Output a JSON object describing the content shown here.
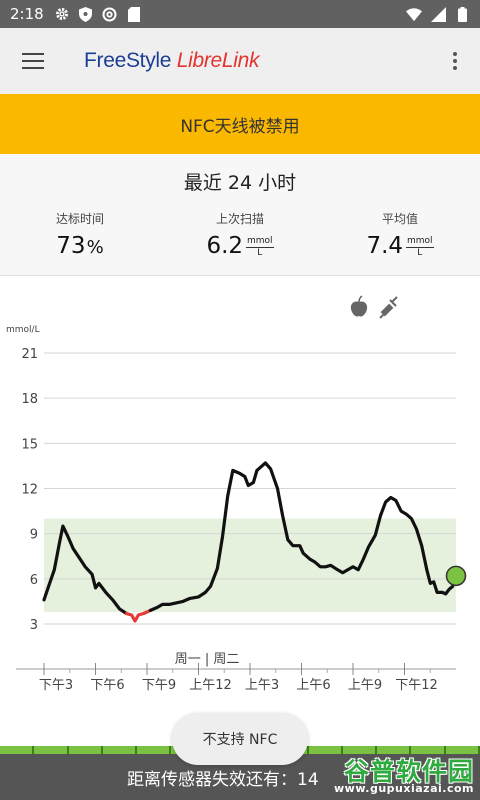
{
  "status_bar": {
    "time": "2:18",
    "left_icons": [
      "gear-icon",
      "shield-icon",
      "at-icon",
      "sdcard-icon"
    ],
    "right_icons": [
      "wifi-icon",
      "signal-icon",
      "battery-icon"
    ]
  },
  "app_bar": {
    "logo_part1": "FreeStyle ",
    "logo_part2": "LibreLink",
    "menu_icon": "hamburger-icon",
    "more_icon": "more-vert-icon"
  },
  "banner": {
    "text": "NFC天线被禁用",
    "color": "#fbb800"
  },
  "summary": {
    "title": "最近 24 小时",
    "time_in_target": {
      "label": "达标时间",
      "value": "73",
      "unit": "%"
    },
    "last_scan": {
      "label": "上次扫描",
      "value": "6.2",
      "unit_top": "mmol",
      "unit_bottom": "L"
    },
    "average": {
      "label": "平均值",
      "value": "7.4",
      "unit_top": "mmol",
      "unit_bottom": "L"
    }
  },
  "chart_data": {
    "type": "line",
    "ylabel": "mmol/L",
    "y_ticks": [
      21,
      18,
      15,
      12,
      9,
      6,
      3
    ],
    "ylim": [
      3,
      21
    ],
    "target_range": [
      3.8,
      10
    ],
    "x_tick_labels": [
      "下午3",
      "下午6",
      "下午9",
      "上午12",
      "上午3",
      "上午6",
      "上午9",
      "下午12"
    ],
    "day_divider_label": "周一 | 周二",
    "icons": [
      "apple-icon",
      "syringe-icon"
    ],
    "low_threshold": 3.9,
    "colors": {
      "line": "#111111",
      "low": "#e53935",
      "range_fill": "#e6f1dd",
      "current_point": "#7cc242"
    },
    "series": [
      {
        "values": [
          [
            0,
            4.6
          ],
          [
            0.3,
            5.6
          ],
          [
            0.6,
            6.6
          ],
          [
            0.9,
            8.4
          ],
          [
            1.1,
            9.5
          ],
          [
            1.4,
            8.8
          ],
          [
            1.7,
            8.0
          ],
          [
            2.0,
            7.5
          ],
          [
            2.4,
            6.8
          ],
          [
            2.8,
            6.3
          ],
          [
            3.0,
            5.4
          ],
          [
            3.2,
            5.7
          ],
          [
            3.6,
            5.1
          ],
          [
            4.0,
            4.6
          ],
          [
            4.4,
            4.0
          ],
          [
            4.8,
            3.7
          ],
          [
            5.1,
            3.6
          ],
          [
            5.3,
            3.2
          ],
          [
            5.5,
            3.6
          ],
          [
            5.8,
            3.7
          ],
          [
            6.2,
            3.9
          ],
          [
            6.6,
            4.1
          ],
          [
            6.9,
            4.3
          ],
          [
            7.3,
            4.3
          ],
          [
            7.7,
            4.4
          ],
          [
            8.1,
            4.5
          ],
          [
            8.5,
            4.7
          ],
          [
            9.0,
            4.8
          ],
          [
            9.4,
            5.1
          ],
          [
            9.7,
            5.5
          ],
          [
            10.1,
            6.7
          ],
          [
            10.4,
            8.8
          ],
          [
            10.7,
            11.5
          ],
          [
            11.0,
            13.2
          ],
          [
            11.4,
            13.0
          ],
          [
            11.7,
            12.8
          ],
          [
            11.9,
            12.2
          ],
          [
            12.2,
            12.4
          ],
          [
            12.4,
            13.2
          ],
          [
            12.9,
            13.7
          ],
          [
            13.2,
            13.3
          ],
          [
            13.6,
            12.0
          ],
          [
            13.9,
            10.2
          ],
          [
            14.2,
            8.6
          ],
          [
            14.5,
            8.2
          ],
          [
            14.9,
            8.2
          ],
          [
            15.1,
            7.7
          ],
          [
            15.5,
            7.3
          ],
          [
            15.8,
            7.1
          ],
          [
            16.1,
            6.8
          ],
          [
            16.4,
            6.8
          ],
          [
            16.7,
            6.9
          ],
          [
            17.1,
            6.6
          ],
          [
            17.4,
            6.4
          ],
          [
            17.7,
            6.6
          ],
          [
            18.0,
            6.8
          ],
          [
            18.3,
            6.6
          ],
          [
            18.6,
            7.3
          ],
          [
            18.9,
            8.1
          ],
          [
            19.3,
            8.9
          ],
          [
            19.6,
            10.2
          ],
          [
            19.9,
            11.1
          ],
          [
            20.2,
            11.4
          ],
          [
            20.5,
            11.2
          ],
          [
            20.8,
            10.5
          ],
          [
            21.1,
            10.3
          ],
          [
            21.4,
            10.0
          ],
          [
            21.7,
            9.3
          ],
          [
            22.0,
            8.2
          ],
          [
            22.3,
            6.6
          ],
          [
            22.5,
            5.7
          ],
          [
            22.7,
            5.8
          ],
          [
            22.9,
            5.1
          ],
          [
            23.2,
            5.1
          ],
          [
            23.4,
            5.0
          ],
          [
            23.6,
            5.3
          ],
          [
            23.8,
            5.5
          ]
        ]
      }
    ],
    "current_value": [
      24,
      6.2
    ]
  },
  "toast": {
    "text": "不支持 NFC"
  },
  "sensor": {
    "remaining_text": "距离传感器失效还有：14"
  },
  "watermark": {
    "title": "谷普软件园",
    "url": "www.gupuxiazai.com"
  }
}
